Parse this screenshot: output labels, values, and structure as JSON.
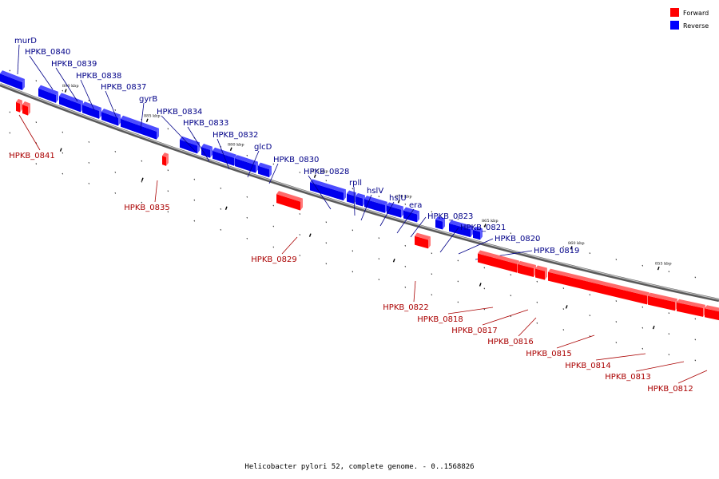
{
  "legend": [
    {
      "label": "Forward",
      "color": "#ff0000"
    },
    {
      "label": "Reverse",
      "color": "#0000ff"
    }
  ],
  "footer": "Helicobacter pylori 52, complete genome. - 0..1568826",
  "kbp_ticks": [
    "890 kbp",
    "885 kbp",
    "880 kbp",
    "875 kbp",
    "870 kbp",
    "865 kbp",
    "860 kbp",
    "855 kbp"
  ],
  "reverse_genes": [
    "murD",
    "HPKB_0840",
    "HPKB_0839",
    "HPKB_0838",
    "HPKB_0837",
    "gyrB",
    "HPKB_0834",
    "HPKB_0833",
    "HPKB_0832",
    "glcD",
    "HPKB_0830",
    "HPKB_0828",
    "rpll",
    "hslV",
    "hslU",
    "era",
    "HPKB_0823",
    "HPKB_0821",
    "HPKB_0820",
    "HPKB_0819"
  ],
  "forward_genes": [
    "HPKB_0841",
    "HPKB_0835",
    "HPKB_0829",
    "HPKB_0822",
    "HPKB_0818",
    "HPKB_0817",
    "HPKB_0816",
    "HPKB_0815",
    "HPKB_0814",
    "HPKB_0813",
    "HPKB_0812"
  ]
}
